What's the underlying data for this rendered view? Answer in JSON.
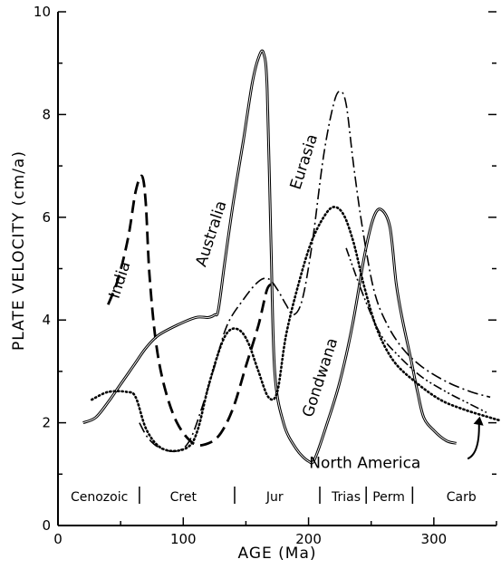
{
  "chart_data": {
    "type": "line",
    "xlabel": "AGE (Ma)",
    "ylabel": "PLATE VELOCITY (cm/a)",
    "xlim": [
      0,
      350
    ],
    "ylim": [
      0,
      10
    ],
    "x_ticks": [
      "0",
      "100",
      "200",
      "300"
    ],
    "y_ticks": [
      "0",
      "2",
      "4",
      "6",
      "8",
      "10"
    ],
    "grid": false,
    "series": [
      {
        "name": "India",
        "style": "dashed",
        "points": [
          [
            40,
            4.3
          ],
          [
            48,
            4.8
          ],
          [
            56,
            5.6
          ],
          [
            62,
            6.5
          ],
          [
            67,
            6.8
          ],
          [
            70,
            6.3
          ],
          [
            73,
            4.9
          ],
          [
            78,
            3.6
          ],
          [
            85,
            2.7
          ],
          [
            95,
            2.0
          ],
          [
            108,
            1.6
          ],
          [
            120,
            1.6
          ],
          [
            130,
            1.8
          ],
          [
            140,
            2.3
          ],
          [
            150,
            3.1
          ],
          [
            160,
            3.9
          ],
          [
            167,
            4.6
          ],
          [
            172,
            4.7
          ]
        ]
      },
      {
        "name": "Australia",
        "style": "double-solid",
        "points": [
          [
            20,
            2.0
          ],
          [
            30,
            2.1
          ],
          [
            40,
            2.4
          ],
          [
            50,
            2.75
          ],
          [
            60,
            3.1
          ],
          [
            70,
            3.45
          ],
          [
            80,
            3.7
          ],
          [
            95,
            3.9
          ],
          [
            110,
            4.05
          ],
          [
            120,
            4.05
          ],
          [
            125,
            4.1
          ],
          [
            128,
            4.2
          ],
          [
            133,
            5.1
          ],
          [
            140,
            6.3
          ],
          [
            148,
            7.5
          ],
          [
            155,
            8.6
          ],
          [
            160,
            9.1
          ],
          [
            164,
            9.2
          ],
          [
            167,
            8.5
          ],
          [
            170,
            5.5
          ],
          [
            173,
            3.0
          ],
          [
            180,
            2.0
          ],
          [
            190,
            1.5
          ],
          [
            200,
            1.25
          ],
          [
            205,
            1.3
          ],
          [
            215,
            2.0
          ],
          [
            225,
            2.8
          ],
          [
            235,
            3.9
          ],
          [
            245,
            5.3
          ],
          [
            252,
            6.0
          ],
          [
            258,
            6.15
          ],
          [
            265,
            5.8
          ],
          [
            270,
            4.7
          ],
          [
            275,
            4.0
          ],
          [
            282,
            3.2
          ],
          [
            287,
            2.6
          ],
          [
            292,
            2.1
          ],
          [
            300,
            1.85
          ],
          [
            310,
            1.65
          ],
          [
            318,
            1.6
          ]
        ]
      },
      {
        "name": "Eurasia",
        "style": "dash-dot",
        "points": [
          [
            65,
            2.0
          ],
          [
            72,
            1.7
          ],
          [
            82,
            1.5
          ],
          [
            95,
            1.45
          ],
          [
            105,
            1.65
          ],
          [
            115,
            2.3
          ],
          [
            125,
            3.1
          ],
          [
            135,
            3.9
          ],
          [
            148,
            4.4
          ],
          [
            160,
            4.75
          ],
          [
            168,
            4.8
          ],
          [
            175,
            4.6
          ],
          [
            182,
            4.3
          ],
          [
            188,
            4.1
          ],
          [
            195,
            4.4
          ],
          [
            203,
            5.5
          ],
          [
            212,
            7.2
          ],
          [
            220,
            8.2
          ],
          [
            225,
            8.45
          ],
          [
            230,
            8.2
          ],
          [
            236,
            7.0
          ],
          [
            243,
            5.8
          ],
          [
            252,
            4.6
          ],
          [
            262,
            3.95
          ],
          [
            275,
            3.45
          ],
          [
            290,
            3.1
          ],
          [
            310,
            2.8
          ],
          [
            330,
            2.6
          ],
          [
            345,
            2.5
          ]
        ]
      },
      {
        "name": "Gondwana",
        "style": "dotted",
        "points": [
          [
            27,
            2.45
          ],
          [
            40,
            2.6
          ],
          [
            55,
            2.6
          ],
          [
            62,
            2.5
          ],
          [
            70,
            1.9
          ],
          [
            80,
            1.55
          ],
          [
            92,
            1.45
          ],
          [
            105,
            1.55
          ],
          [
            112,
            1.9
          ],
          [
            120,
            2.7
          ],
          [
            130,
            3.5
          ],
          [
            137,
            3.8
          ],
          [
            145,
            3.8
          ],
          [
            152,
            3.55
          ],
          [
            160,
            3.0
          ],
          [
            168,
            2.5
          ],
          [
            175,
            2.6
          ],
          [
            182,
            3.7
          ],
          [
            192,
            4.7
          ],
          [
            202,
            5.5
          ],
          [
            212,
            6.0
          ],
          [
            220,
            6.2
          ],
          [
            228,
            6.05
          ],
          [
            236,
            5.5
          ],
          [
            245,
            4.6
          ],
          [
            255,
            3.8
          ],
          [
            268,
            3.2
          ],
          [
            285,
            2.8
          ],
          [
            305,
            2.45
          ],
          [
            325,
            2.25
          ],
          [
            345,
            2.1
          ],
          [
            352,
            2.05
          ]
        ]
      },
      {
        "name": "North America",
        "style": "dash-dot-dot",
        "points": [
          [
            230,
            5.4
          ],
          [
            245,
            4.4
          ],
          [
            258,
            3.7
          ],
          [
            272,
            3.3
          ],
          [
            290,
            2.9
          ],
          [
            310,
            2.6
          ],
          [
            330,
            2.35
          ],
          [
            342,
            2.2
          ]
        ]
      }
    ],
    "eras": [
      {
        "label": "Cenozoic",
        "x": 33
      },
      {
        "label": "Cret",
        "x": 100
      },
      {
        "label": "Jur",
        "x": 173
      },
      {
        "label": "Trias",
        "x": 230
      },
      {
        "label": "Perm",
        "x": 264
      },
      {
        "label": "Carb",
        "x": 322
      }
    ],
    "era_boundaries": [
      65,
      141,
      209,
      246,
      283
    ]
  }
}
